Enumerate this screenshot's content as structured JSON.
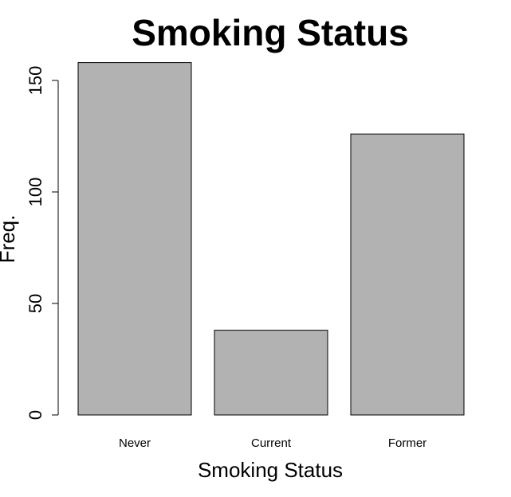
{
  "chart_data": {
    "type": "bar",
    "title": "Smoking Status",
    "xlabel": "Smoking Status",
    "ylabel": "Freq.",
    "categories": [
      "Never",
      "Current",
      "Former"
    ],
    "values": [
      158,
      38,
      126
    ],
    "ylim": [
      0,
      158
    ],
    "yticks": [
      0,
      50,
      100,
      150
    ],
    "bar_color": "#b2b2b2",
    "grid": false
  }
}
